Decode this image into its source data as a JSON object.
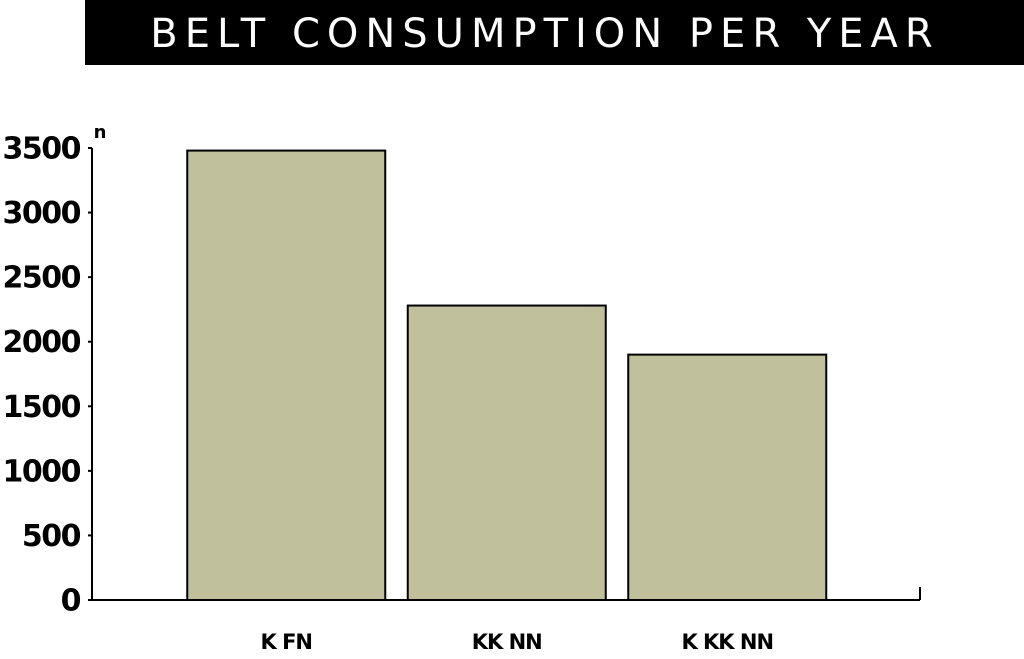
{
  "chart_data": {
    "type": "bar",
    "title": "BELT CONSUMPTION PER YEAR",
    "y_label": "n",
    "categories": [
      "K FN",
      "KK NN",
      "K KK NN"
    ],
    "values": [
      3480,
      2280,
      1900
    ],
    "color": "#c0c19c",
    "ylim": [
      0,
      3500
    ],
    "yticks": [
      0,
      500,
      1000,
      1500,
      2000,
      2500,
      3000,
      3500
    ],
    "grid": false
  }
}
